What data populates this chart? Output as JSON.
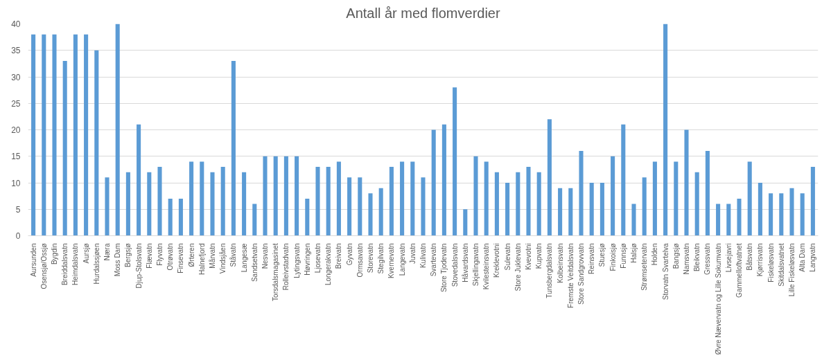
{
  "chart_data": {
    "type": "bar",
    "title": "Antall år med flomverdier",
    "categories": [
      "Aursunden",
      "Osensjø/Ossjø",
      "Bygdin",
      "Breiddalsvatn",
      "Heimdalsvatn",
      "Aursjø",
      "Hurdalssjøen",
      "Næra",
      "Moss Dam",
      "Bergsjø",
      "Djup-Stolsvatn",
      "Flævatn",
      "Flyvatn",
      "Otrøvatn",
      "Finsevatn",
      "Ørteren",
      "Halnefjord",
      "Mårvatn",
      "Vindsjåen",
      "Ståvatn",
      "Langesæ",
      "Sandsetvatn",
      "Nesvatn",
      "Torsdalsmagasinet",
      "Rolleivstadvatn",
      "Lytingsvatn",
      "Høvringen",
      "Ljosevatn",
      "Longerakvatn",
      "Breivatn",
      "Gyvatn",
      "Ormsavatn",
      "Storevatn",
      "Stegilvatn",
      "Kvernevatn",
      "Langevatn",
      "Juvatn",
      "Kulivatn",
      "Svartevatn",
      "Store Tjodevatn",
      "Stovedalsvatn",
      "Håvardsvatn",
      "Skjellingavatn",
      "Kvilesteinsvatn",
      "Kreklevotni",
      "Sulevatn",
      "Store Juklevatn",
      "Kvevotni",
      "Kupvatn",
      "Tunsbergdalsvatn",
      "Kolbeinsvatn",
      "Fremste Veitdalsvatn",
      "Store Sandgrovvatn",
      "Reinsvatn",
      "Stuesjø",
      "Finkoisjø",
      "Funnsjø",
      "Halsjø",
      "Strømsetervatn",
      "Holden",
      "Storvatn Svartelva",
      "Bangsjø",
      "Namsvatn",
      "Bleikvatn",
      "Gressvatn",
      "Øvre Nævervatn og Lille Sokumvatn",
      "Livsejavri",
      "Gammelloftvatnet",
      "Båtsvatn",
      "Kjørrisvatn",
      "Fiskeløsvatn",
      "Skitdalsvatnet",
      "Lille Fiskeløsvatn",
      "Alta Dam",
      "Langvatn"
    ],
    "values": [
      38,
      38,
      38,
      33,
      38,
      38,
      35,
      11,
      40,
      12,
      21,
      12,
      13,
      7,
      7,
      14,
      14,
      12,
      13,
      33,
      12,
      6,
      15,
      15,
      15,
      15,
      7,
      13,
      13,
      14,
      11,
      11,
      8,
      9,
      13,
      14,
      14,
      11,
      20,
      21,
      28,
      5,
      15,
      14,
      12,
      10,
      12,
      13,
      12,
      22,
      9,
      9,
      16,
      10,
      10,
      15,
      21,
      6,
      11,
      14,
      40,
      14,
      20,
      12,
      16,
      6,
      6,
      7,
      14,
      10,
      8,
      8,
      9,
      8,
      13
    ],
    "color": "#5b9bd5",
    "ylim": [
      0,
      40
    ],
    "yticks": [
      0,
      5,
      10,
      15,
      20,
      25,
      30,
      35,
      40
    ],
    "grid": "y"
  }
}
